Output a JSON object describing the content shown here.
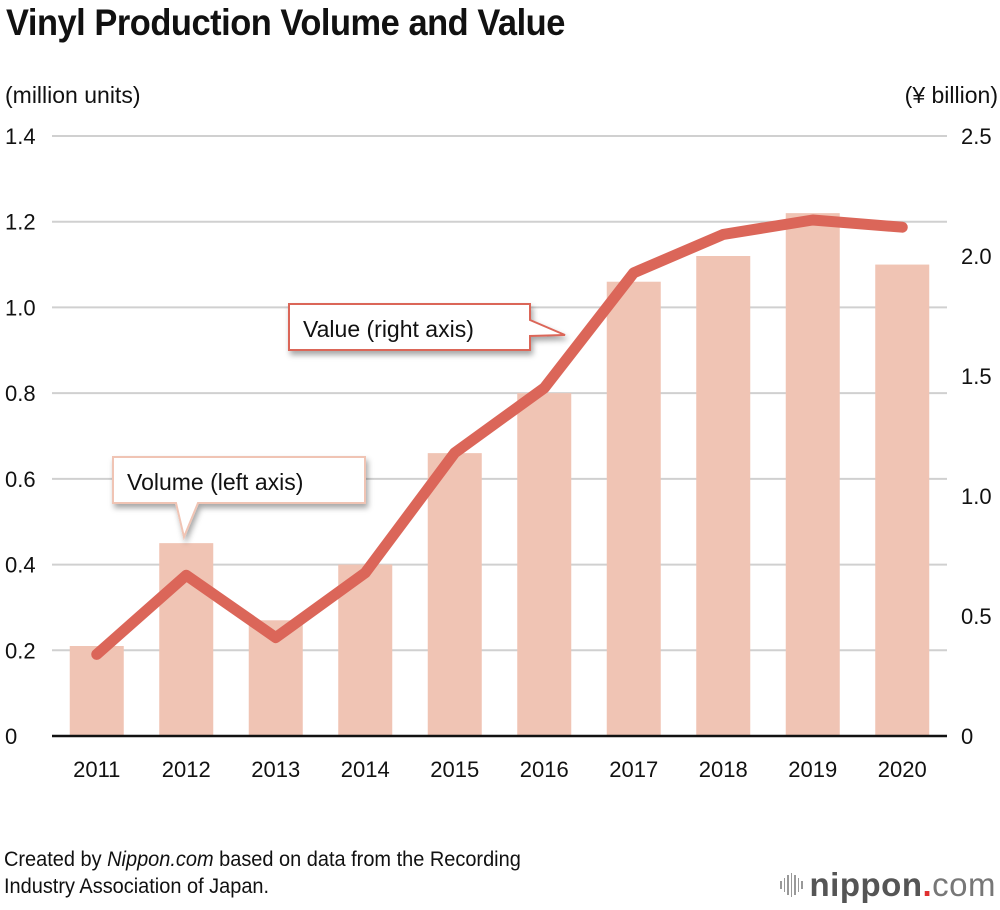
{
  "header": {
    "title": "Vinyl Production Volume and Value",
    "left_unit": "(million units)",
    "right_unit": "(¥ billion)"
  },
  "colors": {
    "bar": "#F0C4B4",
    "line": "#DB6659",
    "grid": "#d0d0d0",
    "axis": "#111111"
  },
  "chart_data": {
    "type": "bar+line",
    "title": "Vinyl Production Volume and Value",
    "categories": [
      "2011",
      "2012",
      "2013",
      "2014",
      "2015",
      "2016",
      "2017",
      "2018",
      "2019",
      "2020"
    ],
    "series": [
      {
        "name": "Volume (left axis)",
        "type": "bar",
        "axis": "left",
        "values": [
          0.21,
          0.45,
          0.27,
          0.4,
          0.66,
          0.8,
          1.06,
          1.12,
          1.22,
          1.1
        ]
      },
      {
        "name": "Value (right axis)",
        "type": "line",
        "axis": "right",
        "values": [
          0.34,
          0.67,
          0.41,
          0.68,
          1.18,
          1.45,
          1.93,
          2.09,
          2.15,
          2.12
        ]
      }
    ],
    "left_axis": {
      "label": "(million units)",
      "ylim": [
        0,
        1.4
      ],
      "ticks": [
        "0",
        "0.2",
        "0.4",
        "0.6",
        "0.8",
        "1.0",
        "1.2",
        "1.4"
      ]
    },
    "right_axis": {
      "label": "(¥ billion)",
      "ylim": [
        0,
        2.5
      ],
      "ticks": [
        "0",
        "0.5",
        "1.0",
        "1.5",
        "2.0",
        "2.5"
      ]
    },
    "grid": true,
    "annotations": [
      {
        "text": "Volume (left axis)",
        "target": "bars",
        "near": "2012"
      },
      {
        "text": "Value (right axis)",
        "target": "line",
        "near": "2016-2017"
      }
    ],
    "xlabel": "",
    "ylabel": "(million units)"
  },
  "footer": {
    "prefix": "Created by ",
    "source_name": "Nippon.com",
    "suffix_line1": " based on data from the Recording",
    "line2": "Industry Association of Japan."
  },
  "logo": {
    "name": "nippon",
    "dot": ".",
    "tld": "com"
  }
}
